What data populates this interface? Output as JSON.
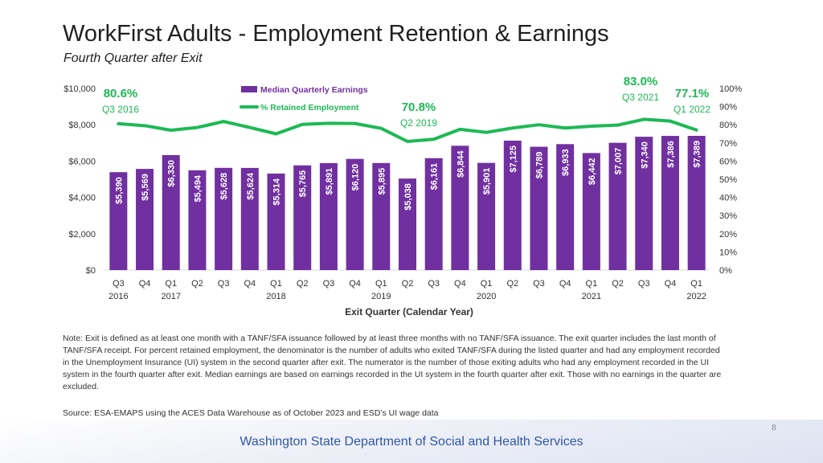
{
  "slide": {
    "title": "WorkFirst Adults - Employment Retention & Earnings",
    "subtitle": "Fourth Quarter after Exit",
    "note": "Note: Exit is defined as at least one month with a TANF/SFA issuance followed by at least three months with no TANF/SFA issuance. The exit quarter includes the last month of TANF/SFA receipt. For percent retained employment, the denominator is the number of adults who exited TANF/SFA during the listed quarter and had any employment recorded in the Unemployment Insurance (UI) system in the second quarter after exit. The numerator is the number of those exiting adults who had any employment recorded in the UI system in the fourth quarter after exit. Median earnings are based on earnings recorded in the UI system in the fourth quarter after exit. Those with no earnings in the quarter are excluded.",
    "source": "Source: ESA-EMAPS using the ACES Data Warehouse as of October 2023 and ESD’s UI wage data",
    "page_number": "8",
    "footer": "Washington State Department of Social and Health Services"
  },
  "colors": {
    "bar": "#7030a0",
    "line": "#1db954",
    "highlight_text": "#1db954",
    "footer_text": "#2f58a8"
  },
  "chart_data": {
    "type": "bar",
    "xlabel": "Exit Quarter (Calendar Year)",
    "categories": [
      "Q3",
      "Q4",
      "Q1",
      "Q2",
      "Q3",
      "Q4",
      "Q1",
      "Q2",
      "Q3",
      "Q4",
      "Q1",
      "Q2",
      "Q3",
      "Q4",
      "Q1",
      "Q2",
      "Q3",
      "Q4",
      "Q1",
      "Q2",
      "Q3",
      "Q4",
      "Q1"
    ],
    "year_labels": [
      {
        "index": 0,
        "label": "2016"
      },
      {
        "index": 2,
        "label": "2017"
      },
      {
        "index": 6,
        "label": "2018"
      },
      {
        "index": 10,
        "label": "2019"
      },
      {
        "index": 14,
        "label": "2020"
      },
      {
        "index": 18,
        "label": "2021"
      },
      {
        "index": 22,
        "label": "2022"
      }
    ],
    "series": [
      {
        "name": "Median Quarterly Earnings",
        "axis": "left",
        "values": [
          5390,
          5569,
          6330,
          5494,
          5628,
          5624,
          5314,
          5765,
          5891,
          6120,
          5895,
          5038,
          6161,
          6844,
          5901,
          7125,
          6789,
          6933,
          6442,
          7007,
          7340,
          7386,
          7389
        ],
        "labels": [
          "$5,390",
          "$5,569",
          "$6,330",
          "$5,494",
          "$5,628",
          "$5,624",
          "$5,314",
          "$5,765",
          "$5,891",
          "$6,120",
          "$5,895",
          "$5,038",
          "$6,161",
          "$6,844",
          "$5,901",
          "$7,125",
          "$6,789",
          "$6,933",
          "$6,442",
          "$7,007",
          "$7,340",
          "$7,386",
          "$7,389"
        ]
      },
      {
        "name": "% Retained Employment",
        "type": "line",
        "axis": "right",
        "values": [
          80.6,
          79.5,
          77.0,
          78.5,
          81.8,
          78.5,
          75.0,
          80.2,
          80.8,
          80.7,
          78.0,
          70.8,
          72.0,
          77.5,
          75.8,
          78.2,
          80.0,
          78.2,
          79.2,
          79.8,
          83.0,
          82.0,
          77.1
        ]
      }
    ],
    "left_axis": {
      "min": 0,
      "max": 10000,
      "ticks": [
        "$0",
        "$2,000",
        "$4,000",
        "$6,000",
        "$8,000",
        "$10,000"
      ],
      "tick_values": [
        0,
        2000,
        4000,
        6000,
        8000,
        10000
      ]
    },
    "right_axis": {
      "min": 0,
      "max": 100,
      "ticks": [
        "0%",
        "10%",
        "20%",
        "30%",
        "40%",
        "50%",
        "60%",
        "70%",
        "80%",
        "90%",
        "100%"
      ],
      "tick_values": [
        0,
        10,
        20,
        30,
        40,
        50,
        60,
        70,
        80,
        90,
        100
      ]
    },
    "annotations": [
      {
        "index": 0,
        "value": "80.6%",
        "period": "Q3 2016"
      },
      {
        "index": 11,
        "value": "70.8%",
        "period": "Q2 2019"
      },
      {
        "index": 20,
        "value": "83.0%",
        "period": "Q3 2021"
      },
      {
        "index": 22,
        "value": "77.1%",
        "period": "Q1 2022"
      }
    ],
    "legend": [
      "Median Quarterly Earnings",
      "% Retained Employment"
    ]
  }
}
